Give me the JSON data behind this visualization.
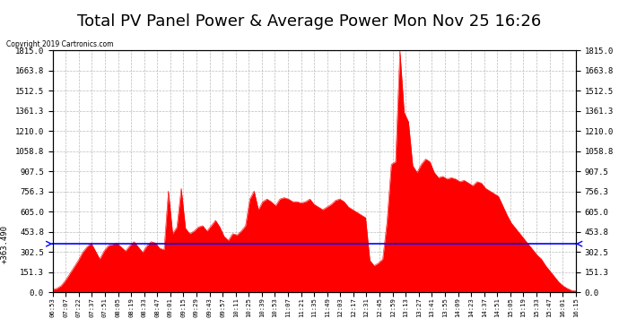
{
  "title": "Total PV Panel Power & Average Power Mon Nov 25 16:26",
  "copyright": "Copyright 2019 Cartronics.com",
  "average_value": 363.49,
  "average_label": "363.490",
  "y_max": 1815.0,
  "y_min": 0.0,
  "yticks": [
    0.0,
    151.3,
    302.5,
    453.8,
    605.0,
    756.3,
    907.5,
    1058.8,
    1210.0,
    1361.3,
    1512.5,
    1663.8,
    1815.0
  ],
  "fill_color": "#FF0000",
  "average_color": "#0000FF",
  "background_color": "#FFFFFF",
  "grid_color": "#AAAAAA",
  "legend_avg_bg": "#0000CD",
  "legend_pv_bg": "#FF0000",
  "title_fontsize": 13,
  "x_labels": [
    "06:53",
    "07:07",
    "07:22",
    "07:37",
    "07:51",
    "08:05",
    "08:19",
    "08:33",
    "08:47",
    "09:01",
    "09:15",
    "09:29",
    "09:43",
    "09:57",
    "10:11",
    "10:25",
    "10:39",
    "10:53",
    "11:07",
    "11:21",
    "11:35",
    "11:49",
    "12:03",
    "12:17",
    "12:31",
    "12:45",
    "12:59",
    "13:13",
    "13:27",
    "13:41",
    "13:55",
    "14:09",
    "14:23",
    "14:37",
    "14:51",
    "15:05",
    "15:19",
    "15:33",
    "15:47",
    "16:01",
    "16:15"
  ],
  "pv_values": [
    20,
    30,
    50,
    90,
    140,
    190,
    240,
    300,
    340,
    370,
    310,
    250,
    310,
    350,
    360,
    370,
    340,
    310,
    350,
    380,
    340,
    300,
    350,
    380,
    370,
    330,
    320,
    760,
    440,
    490,
    780,
    480,
    440,
    460,
    490,
    500,
    460,
    500,
    540,
    490,
    420,
    390,
    440,
    430,
    460,
    500,
    700,
    760,
    620,
    680,
    700,
    680,
    650,
    700,
    710,
    700,
    680,
    680,
    670,
    680,
    700,
    660,
    640,
    620,
    640,
    660,
    690,
    700,
    680,
    640,
    620,
    600,
    580,
    560,
    240,
    200,
    220,
    250,
    530,
    960,
    980,
    1815,
    1350,
    1280,
    950,
    900,
    960,
    1000,
    980,
    900,
    860,
    870,
    850,
    860,
    850,
    830,
    840,
    820,
    800,
    830,
    820,
    780,
    760,
    740,
    720,
    650,
    580,
    520,
    480,
    440,
    400,
    360,
    320,
    280,
    250,
    200,
    160,
    120,
    80,
    50,
    30,
    15,
    10
  ]
}
